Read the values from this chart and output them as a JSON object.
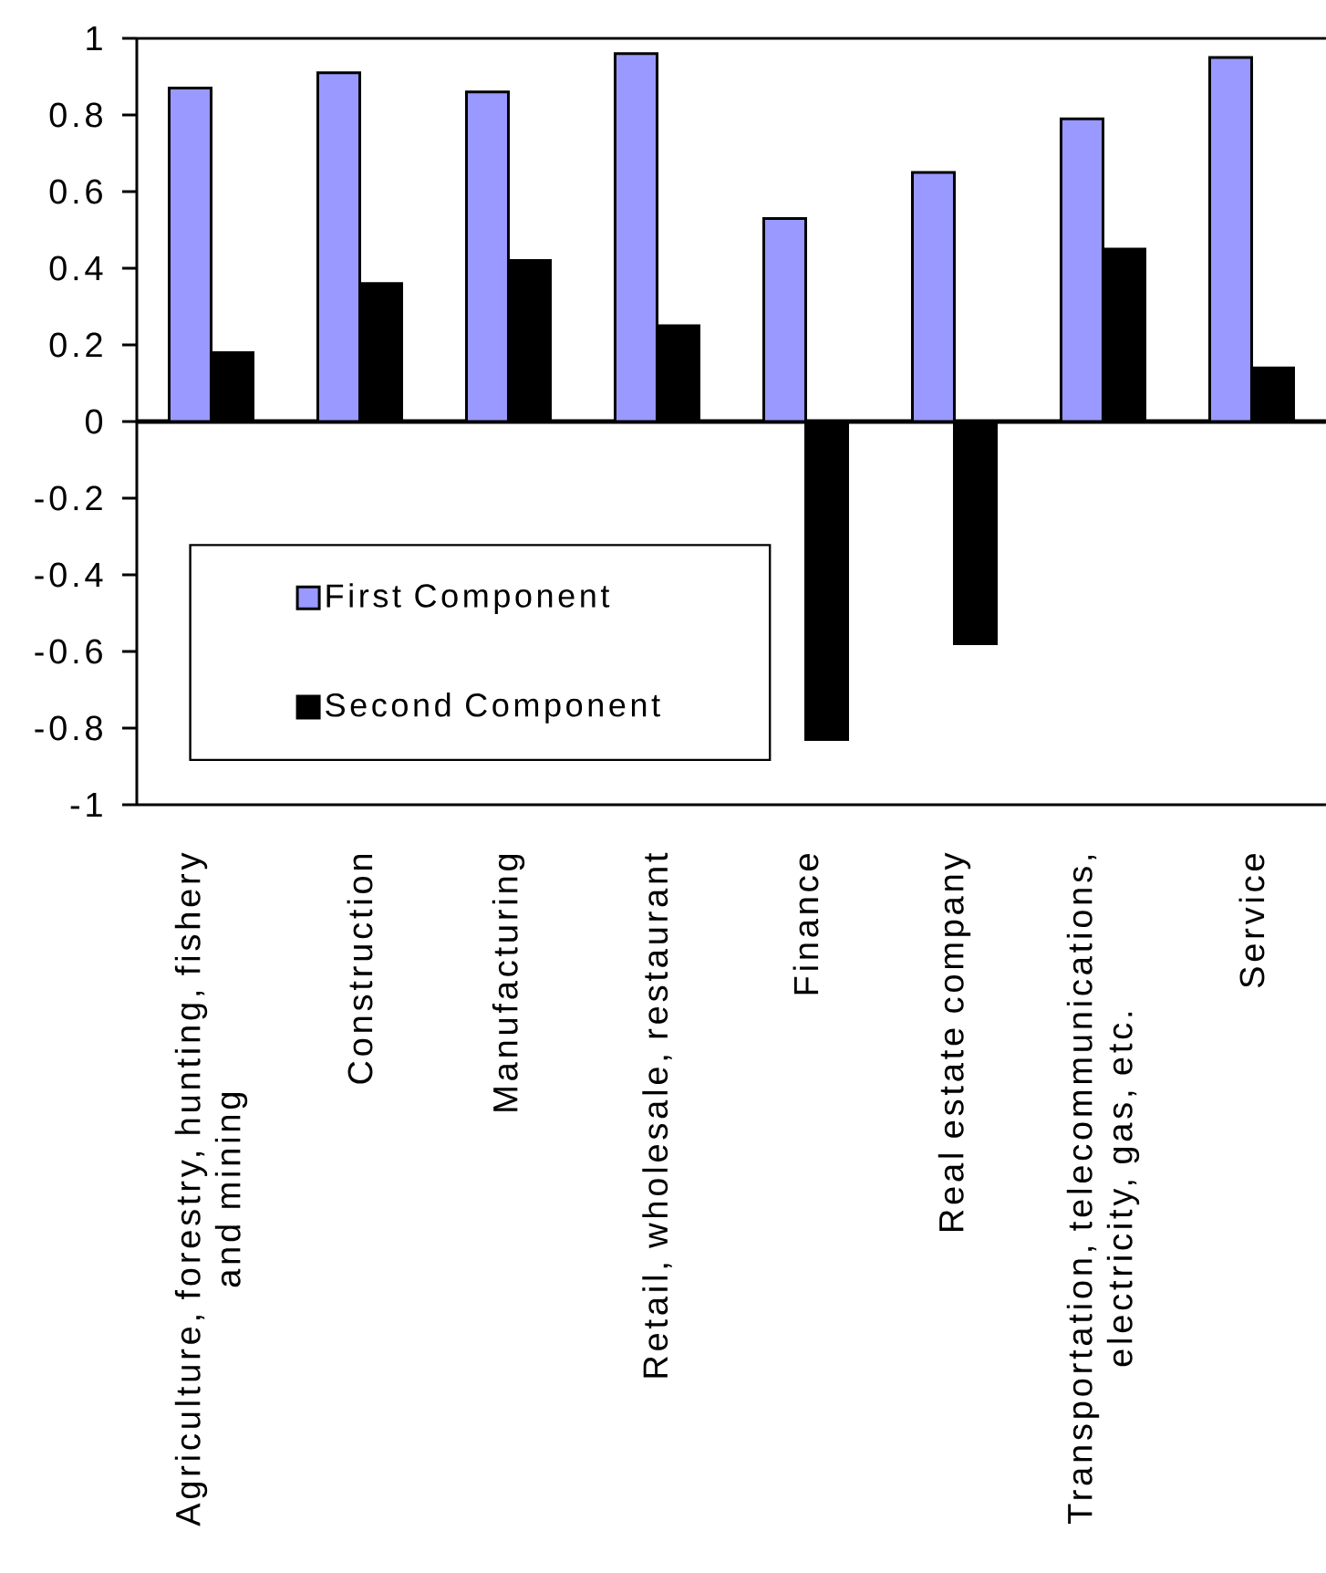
{
  "chart_data": {
    "type": "bar",
    "categories": [
      "Agriculture, forestry, hunting, fishery and mining",
      "Construction",
      "Manufacturing",
      "Retail, wholesale, restaurant",
      "Finance",
      "Real estate company",
      "Transportation, telecommunications, electricity, gas, etc.",
      "Service"
    ],
    "series": [
      {
        "name": "First Component",
        "color": "#9999ff",
        "values": [
          0.87,
          0.91,
          0.86,
          0.96,
          0.53,
          0.65,
          0.79,
          0.95
        ]
      },
      {
        "name": "Second Component",
        "color": "#000000",
        "values": [
          0.18,
          0.36,
          0.42,
          0.25,
          -0.83,
          -0.58,
          0.45,
          0.14
        ]
      }
    ],
    "ylim": [
      -1,
      1
    ],
    "yticks": [
      -1,
      -0.8,
      -0.6,
      -0.4,
      -0.2,
      0,
      0.2,
      0.4,
      0.6,
      0.8,
      1
    ],
    "legend": "bottom left"
  }
}
